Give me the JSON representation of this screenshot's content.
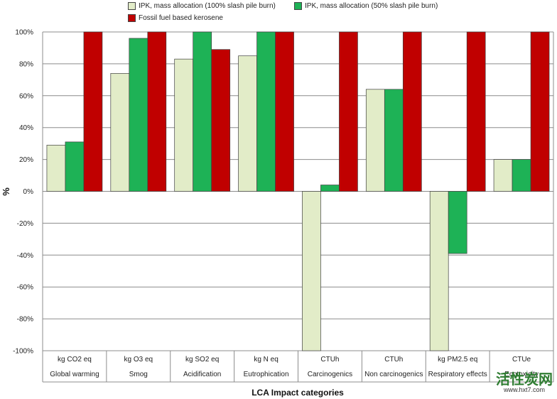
{
  "chart_data": {
    "type": "bar",
    "categories": [
      {
        "unit": "kg CO2 eq",
        "name": "Global warming"
      },
      {
        "unit": "kg O3 eq",
        "name": "Smog"
      },
      {
        "unit": "kg SO2 eq",
        "name": "Acidification"
      },
      {
        "unit": "kg N eq",
        "name": "Eutrophication"
      },
      {
        "unit": "CTUh",
        "name": "Carcinogenics"
      },
      {
        "unit": "CTUh",
        "name": "Non carcinogenics"
      },
      {
        "unit": "kg PM2.5 eq",
        "name": "Respiratory effects"
      },
      {
        "unit": "CTUe",
        "name": "Ecotoxicity"
      }
    ],
    "series": [
      {
        "name": "IPK, mass allocation (100% slash pile burn)",
        "color": "#e2ecc8",
        "values": [
          29,
          74,
          83,
          85,
          -100,
          64,
          -100,
          20
        ]
      },
      {
        "name": "IPK, mass allocation (50% slash pile burn)",
        "color": "#1eb256",
        "values": [
          31,
          96,
          100,
          100,
          4,
          64,
          -39,
          20
        ]
      },
      {
        "name": "Fossil fuel based kerosene",
        "color": "#c00000",
        "values": [
          100,
          100,
          89,
          100,
          100,
          100,
          100,
          100
        ]
      }
    ],
    "ylim": [
      -100,
      100
    ],
    "yticks": [
      "-100%",
      "-80%",
      "-60%",
      "-40%",
      "-20%",
      "0%",
      "20%",
      "40%",
      "60%",
      "80%",
      "100%"
    ],
    "ytick_values": [
      -100,
      -80,
      -60,
      -40,
      -20,
      0,
      20,
      40,
      60,
      80,
      100
    ],
    "xlabel": "LCA Impact categories",
    "ylabel": "%",
    "grid": true,
    "legend": "top"
  },
  "watermark": {
    "title": "活性炭网",
    "url": "www.hxt7.com"
  }
}
